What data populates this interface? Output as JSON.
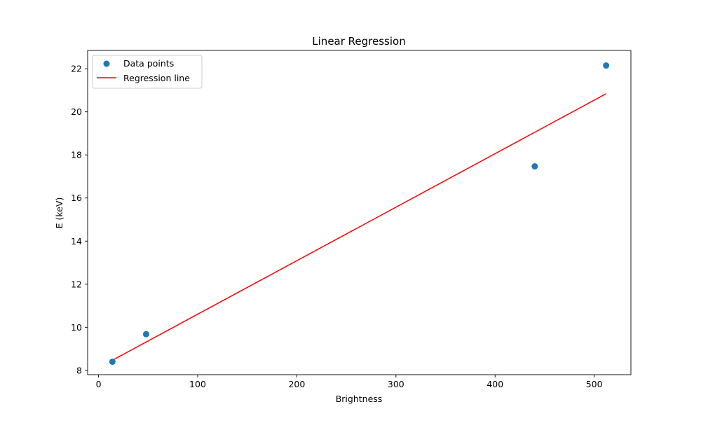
{
  "chart_data": {
    "type": "scatter",
    "title": "Linear Regression",
    "xlabel": "Brightness",
    "ylabel": "E (keV)",
    "xlim": [
      -11,
      537
    ],
    "ylim": [
      7.8,
      22.85
    ],
    "xticks": [
      0,
      100,
      200,
      300,
      400,
      500
    ],
    "yticks": [
      8,
      10,
      12,
      14,
      16,
      18,
      20,
      22
    ],
    "grid": false,
    "legend_position": "upper-left",
    "series": [
      {
        "name": "Data points",
        "kind": "scatter",
        "color": "#1f77b4",
        "points": [
          {
            "x": 14,
            "y": 8.4
          },
          {
            "x": 48,
            "y": 9.68
          },
          {
            "x": 440,
            "y": 17.47
          },
          {
            "x": 512,
            "y": 22.15
          }
        ]
      },
      {
        "name": "Regression line",
        "kind": "line",
        "color": "#ff0000",
        "points": [
          {
            "x": 14,
            "y": 8.47
          },
          {
            "x": 512,
            "y": 20.84
          }
        ]
      }
    ]
  }
}
